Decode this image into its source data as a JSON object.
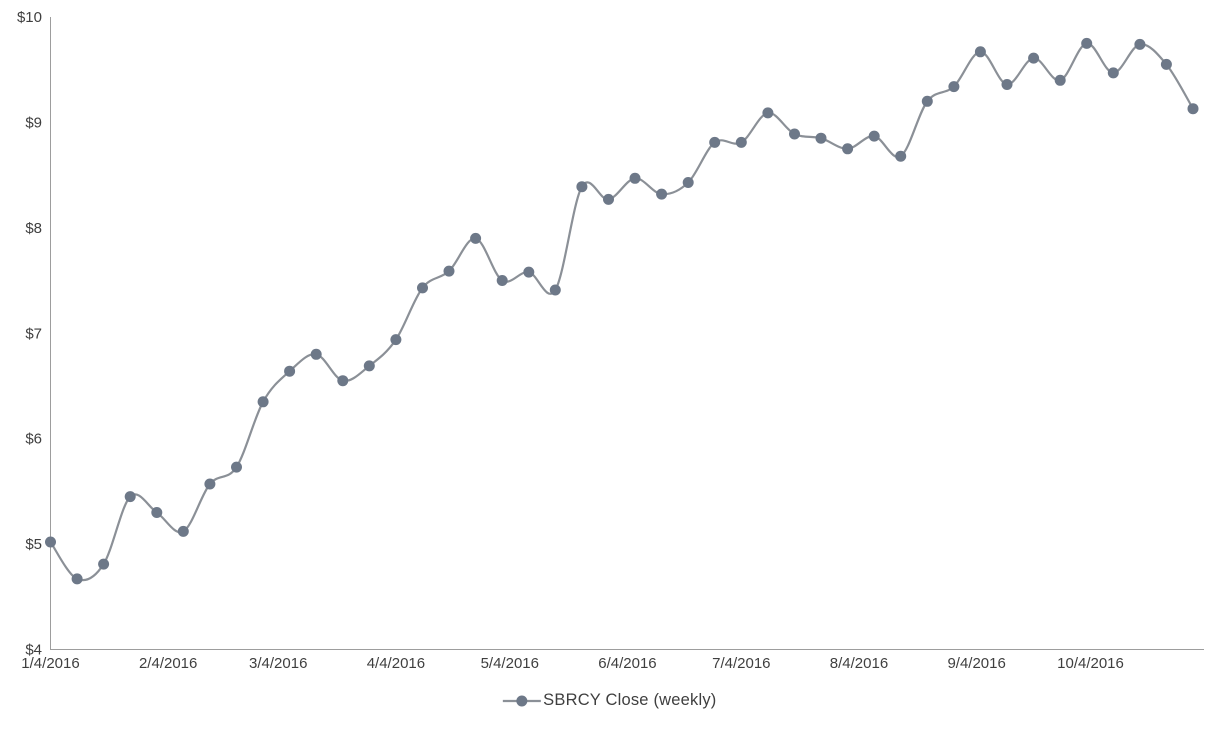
{
  "chart_data": {
    "type": "line",
    "title": "",
    "legend": {
      "position": "bottom",
      "label": "SBRCY Close (weekly)"
    },
    "series": [
      {
        "name": "SBRCY Close (weekly)",
        "dates": [
          "1/4/2016",
          "1/11/2016",
          "1/18/2016",
          "1/25/2016",
          "2/1/2016",
          "2/8/2016",
          "2/15/2016",
          "2/22/2016",
          "2/29/2016",
          "3/7/2016",
          "3/14/2016",
          "3/21/2016",
          "3/28/2016",
          "4/4/2016",
          "4/11/2016",
          "4/18/2016",
          "4/25/2016",
          "5/2/2016",
          "5/9/2016",
          "5/16/2016",
          "5/23/2016",
          "5/30/2016",
          "6/6/2016",
          "6/13/2016",
          "6/20/2016",
          "6/27/2016",
          "7/4/2016",
          "7/11/2016",
          "7/18/2016",
          "7/25/2016",
          "8/1/2016",
          "8/8/2016",
          "8/15/2016",
          "8/22/2016",
          "8/29/2016",
          "9/5/2016",
          "9/12/2016",
          "9/19/2016",
          "9/26/2016",
          "10/3/2016",
          "10/10/2016",
          "10/17/2016",
          "10/24/2016",
          "10/31/2016"
        ],
        "values": [
          5.02,
          4.67,
          4.81,
          5.45,
          5.3,
          5.12,
          5.57,
          5.73,
          6.35,
          6.64,
          6.8,
          6.55,
          6.69,
          6.94,
          7.43,
          7.59,
          7.9,
          7.5,
          7.58,
          7.41,
          8.39,
          8.27,
          8.47,
          8.32,
          8.43,
          8.81,
          8.81,
          9.09,
          8.89,
          8.85,
          8.75,
          8.87,
          8.68,
          9.2,
          9.34,
          9.67,
          9.36,
          9.61,
          9.4,
          9.75,
          9.47,
          9.74,
          9.55,
          9.13
        ]
      }
    ],
    "x_axis": {
      "tick_labels": [
        "1/4/2016",
        "2/4/2016",
        "3/4/2016",
        "4/4/2016",
        "5/4/2016",
        "6/4/2016",
        "7/4/2016",
        "8/4/2016",
        "9/4/2016",
        "10/4/2016"
      ]
    },
    "y_axis": {
      "tick_labels": [
        "$4",
        "$5",
        "$6",
        "$7",
        "$8",
        "$9",
        "$10"
      ],
      "min": 4,
      "max": 10,
      "tick_step": 1,
      "tick_prefix": "$"
    },
    "grid": false,
    "smooth_line": true,
    "marker_shape": "circle",
    "colors": {
      "line": "#8b9097",
      "marker": "#6d7888",
      "axis": "#9d9d9d",
      "text": "#3f3f3f"
    }
  }
}
